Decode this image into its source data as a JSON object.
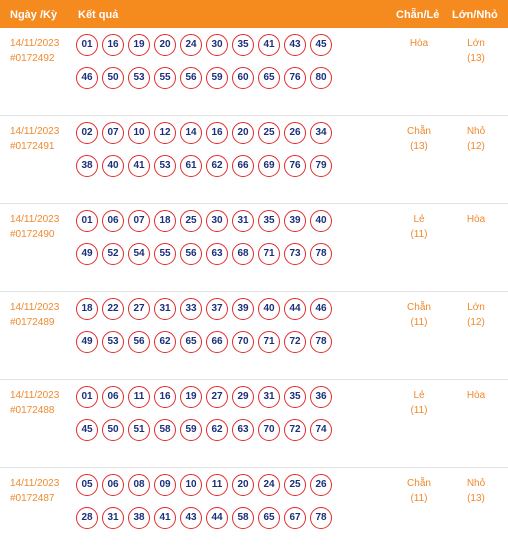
{
  "header": {
    "date_label": "Ngày /Kỳ",
    "result_label": "Kết quả",
    "even_odd_label": "Chẵn/Lẻ",
    "big_small_label": "Lớn/Nhỏ"
  },
  "rows": [
    {
      "date": "14/11/2023",
      "id": "#0172492",
      "balls": [
        "01",
        "16",
        "19",
        "20",
        "24",
        "30",
        "35",
        "41",
        "43",
        "45",
        "46",
        "50",
        "53",
        "55",
        "56",
        "59",
        "60",
        "65",
        "76",
        "80"
      ],
      "even_odd": "Hòa",
      "even_odd_count": "",
      "big_small": "Lớn",
      "big_small_count": "(13)"
    },
    {
      "date": "14/11/2023",
      "id": "#0172491",
      "balls": [
        "02",
        "07",
        "10",
        "12",
        "14",
        "16",
        "20",
        "25",
        "26",
        "34",
        "38",
        "40",
        "41",
        "53",
        "61",
        "62",
        "66",
        "69",
        "76",
        "79"
      ],
      "even_odd": "Chẵn",
      "even_odd_count": "(13)",
      "big_small": "Nhỏ",
      "big_small_count": "(12)"
    },
    {
      "date": "14/11/2023",
      "id": "#0172490",
      "balls": [
        "01",
        "06",
        "07",
        "18",
        "25",
        "30",
        "31",
        "35",
        "39",
        "40",
        "49",
        "52",
        "54",
        "55",
        "56",
        "63",
        "68",
        "71",
        "73",
        "78"
      ],
      "even_odd": "Lẻ",
      "even_odd_count": "(11)",
      "big_small": "Hòa",
      "big_small_count": ""
    },
    {
      "date": "14/11/2023",
      "id": "#0172489",
      "balls": [
        "18",
        "22",
        "27",
        "31",
        "33",
        "37",
        "39",
        "40",
        "44",
        "46",
        "49",
        "53",
        "56",
        "62",
        "65",
        "66",
        "70",
        "71",
        "72",
        "78"
      ],
      "even_odd": "Chẵn",
      "even_odd_count": "(11)",
      "big_small": "Lớn",
      "big_small_count": "(12)"
    },
    {
      "date": "14/11/2023",
      "id": "#0172488",
      "balls": [
        "01",
        "06",
        "11",
        "16",
        "19",
        "27",
        "29",
        "31",
        "35",
        "36",
        "45",
        "50",
        "51",
        "58",
        "59",
        "62",
        "63",
        "70",
        "72",
        "74"
      ],
      "even_odd": "Lẻ",
      "even_odd_count": "(11)",
      "big_small": "Hòa",
      "big_small_count": ""
    },
    {
      "date": "14/11/2023",
      "id": "#0172487",
      "balls": [
        "05",
        "06",
        "08",
        "09",
        "10",
        "11",
        "20",
        "24",
        "25",
        "26",
        "28",
        "31",
        "38",
        "41",
        "43",
        "44",
        "58",
        "65",
        "67",
        "78"
      ],
      "even_odd": "Chẵn",
      "even_odd_count": "(11)",
      "big_small": "Nhỏ",
      "big_small_count": "(13)"
    }
  ],
  "colors": {
    "header_bg": "#f58a1f",
    "accent_text": "#f0892d",
    "ball_border": "#e32b2b",
    "ball_text": "#1a2f7a"
  }
}
